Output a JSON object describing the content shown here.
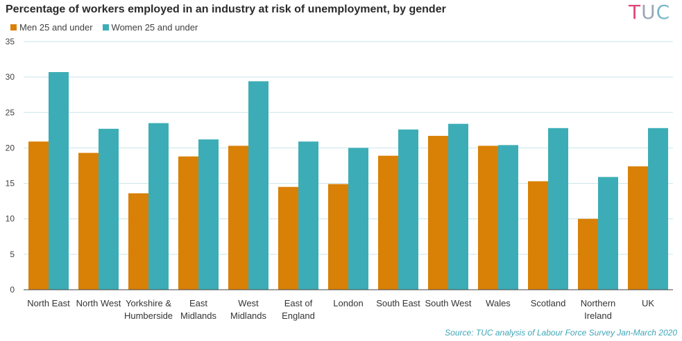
{
  "header": {
    "title": "Percentage of workers employed in an industry at risk of unemployment, by gender",
    "logo_text": [
      "T",
      "U",
      "C"
    ],
    "logo_colors": [
      "#e0457b",
      "#9aa6b2",
      "#7ab7c9"
    ]
  },
  "colors": {
    "men": "#d98006",
    "women": "#3cadb6",
    "grid": "#c9e3ea",
    "axis": "#404040",
    "source_text": "#3fa6b8"
  },
  "source": "Source: TUC analysis  of Labour Force Survey Jan-March 2020",
  "chart_data": {
    "type": "bar",
    "title": "Percentage of workers employed in an industry at risk of unemployment, by gender",
    "xlabel": "",
    "ylabel": "",
    "ylim": [
      0,
      35
    ],
    "yticks": [
      0,
      5,
      10,
      15,
      20,
      25,
      30,
      35
    ],
    "grid": true,
    "legend_position": "top-left",
    "categories": [
      [
        "North East"
      ],
      [
        "North West"
      ],
      [
        "Yorkshire &",
        "Humberside"
      ],
      [
        "East",
        "Midlands"
      ],
      [
        "West",
        "Midlands"
      ],
      [
        "East of",
        "England"
      ],
      [
        "London"
      ],
      [
        "South East"
      ],
      [
        "South West"
      ],
      [
        "Wales"
      ],
      [
        "Scotland"
      ],
      [
        "Northern",
        "Ireland"
      ],
      [
        "UK"
      ]
    ],
    "series": [
      {
        "name": "Men 25 and under",
        "values": [
          20.9,
          19.3,
          13.6,
          18.8,
          20.3,
          14.5,
          14.9,
          18.9,
          21.7,
          20.3,
          15.3,
          10.0,
          17.4
        ]
      },
      {
        "name": "Women 25 and under",
        "values": [
          30.7,
          22.7,
          23.5,
          21.2,
          29.4,
          20.9,
          20.0,
          22.6,
          23.4,
          20.4,
          22.8,
          15.9,
          22.8
        ]
      }
    ]
  }
}
